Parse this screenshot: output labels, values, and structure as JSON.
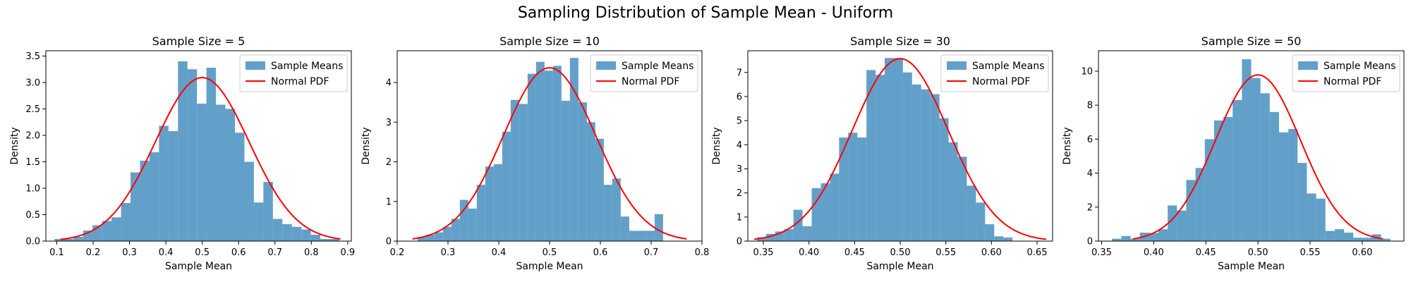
{
  "figure": {
    "title": "Sampling Distribution of Sample Mean - Uniform",
    "colors": {
      "histogram": "#1f77b4",
      "pdf": "#ff0000"
    }
  },
  "chart_data": [
    {
      "type": "bar",
      "title": "Sample Size = 5",
      "xlabel": "Sample Mean",
      "ylabel": "Density",
      "xlim": [
        0.07,
        0.91
      ],
      "ylim": [
        0,
        3.6
      ],
      "xticks": [
        0.1,
        0.2,
        0.3,
        0.4,
        0.5,
        0.6,
        0.7,
        0.8,
        0.9
      ],
      "xtick_labels": [
        "0.1",
        "0.2",
        "0.3",
        "0.4",
        "0.5",
        "0.6",
        "0.7",
        "0.8",
        "0.9"
      ],
      "yticks": [
        0,
        0.5,
        1.0,
        1.5,
        2.0,
        2.5,
        3.0,
        3.5
      ],
      "ytick_labels": [
        "0.0",
        "0.5",
        "1.0",
        "1.5",
        "2.0",
        "2.5",
        "3.0",
        "3.5"
      ],
      "legend": {
        "placement": "top-right",
        "entries": [
          "Sample Means",
          "Normal PDF"
        ]
      },
      "histogram": {
        "name": "Sample Means",
        "bin_start": 0.094,
        "bin_width": 0.0261,
        "densities": [
          0.04,
          0.04,
          0.08,
          0.2,
          0.3,
          0.38,
          0.45,
          0.72,
          1.3,
          1.52,
          1.68,
          2.18,
          2.08,
          3.4,
          3.25,
          2.6,
          3.28,
          2.58,
          2.5,
          2.05,
          1.5,
          0.73,
          1.12,
          0.42,
          0.32,
          0.27,
          0.22,
          0.12,
          0.04,
          0.04
        ]
      },
      "pdf": {
        "name": "Normal PDF",
        "mean": 0.5,
        "sd": 0.129,
        "x_range": [
          0.11,
          0.88
        ]
      }
    },
    {
      "type": "bar",
      "title": "Sample Size = 10",
      "xlabel": "Sample Mean",
      "ylabel": "Density",
      "xlim": [
        0.2,
        0.8
      ],
      "ylim": [
        0,
        4.8
      ],
      "xticks": [
        0.2,
        0.3,
        0.4,
        0.5,
        0.6,
        0.7,
        0.8
      ],
      "xtick_labels": [
        "0.2",
        "0.3",
        "0.4",
        "0.5",
        "0.6",
        "0.7",
        "0.8"
      ],
      "yticks": [
        0,
        1,
        2,
        3,
        4
      ],
      "ytick_labels": [
        "0",
        "1",
        "2",
        "3",
        "4"
      ],
      "legend": {
        "placement": "top-right",
        "entries": [
          "Sample Means",
          "Normal PDF"
        ]
      },
      "histogram": {
        "name": "Sample Means",
        "bin_start": 0.24,
        "bin_width": 0.01667,
        "densities": [
          0.1,
          0.16,
          0.22,
          0.36,
          0.56,
          1.04,
          0.82,
          1.42,
          1.88,
          1.94,
          2.76,
          3.56,
          3.46,
          4.22,
          4.52,
          4.3,
          4.42,
          3.54,
          4.62,
          3.5,
          3.0,
          2.58,
          1.42,
          1.58,
          0.62,
          0.26,
          0.26,
          0.26,
          0.68
        ]
      },
      "pdf": {
        "name": "Normal PDF",
        "mean": 0.5,
        "sd": 0.0913,
        "x_range": [
          0.23,
          0.77
        ]
      }
    },
    {
      "type": "bar",
      "title": "Sample Size = 30",
      "xlabel": "Sample Mean",
      "ylabel": "Density",
      "xlim": [
        0.333,
        0.667
      ],
      "ylim": [
        0,
        7.9
      ],
      "xticks": [
        0.35,
        0.4,
        0.45,
        0.5,
        0.55,
        0.6,
        0.65
      ],
      "xtick_labels": [
        "0.35",
        "0.40",
        "0.45",
        "0.50",
        "0.55",
        "0.60",
        "0.65"
      ],
      "yticks": [
        0,
        1,
        2,
        3,
        4,
        5,
        6,
        7
      ],
      "ytick_labels": [
        "0",
        "1",
        "2",
        "3",
        "4",
        "5",
        "6",
        "7"
      ],
      "legend": {
        "placement": "top-right",
        "entries": [
          "Sample Means",
          "Normal PDF"
        ]
      },
      "histogram": {
        "name": "Sample Means",
        "bin_start": 0.343,
        "bin_width": 0.01,
        "densities": [
          0.16,
          0.3,
          0.4,
          0.5,
          1.3,
          0.62,
          2.2,
          2.4,
          2.8,
          4.3,
          4.5,
          4.3,
          7.1,
          6.9,
          7.6,
          7.6,
          7.0,
          6.5,
          6.3,
          6.1,
          5.1,
          4.1,
          3.5,
          2.3,
          1.6,
          0.7,
          0.2,
          0.15
        ]
      },
      "pdf": {
        "name": "Normal PDF",
        "mean": 0.5,
        "sd": 0.0527,
        "x_range": [
          0.34,
          0.66
        ]
      }
    },
    {
      "type": "bar",
      "title": "Sample Size = 50",
      "xlabel": "Sample Mean",
      "ylabel": "Density",
      "xlim": [
        0.347,
        0.64
      ],
      "ylim": [
        0,
        11.2
      ],
      "xticks": [
        0.35,
        0.4,
        0.45,
        0.5,
        0.55,
        0.6
      ],
      "xtick_labels": [
        "0.35",
        "0.40",
        "0.45",
        "0.50",
        "0.55",
        "0.60"
      ],
      "yticks": [
        0,
        2,
        4,
        6,
        8,
        10
      ],
      "ytick_labels": [
        "0",
        "2",
        "4",
        "6",
        "8",
        "10"
      ],
      "legend": {
        "placement": "top-right",
        "entries": [
          "Sample Means",
          "Normal PDF"
        ]
      },
      "histogram": {
        "name": "Sample Means",
        "bin_start": 0.36,
        "bin_width": 0.0089,
        "densities": [
          0.14,
          0.3,
          0.14,
          0.5,
          0.48,
          0.7,
          2.1,
          1.8,
          3.6,
          4.3,
          6.0,
          7.1,
          7.3,
          8.3,
          10.7,
          9.6,
          8.7,
          7.6,
          6.4,
          6.6,
          4.6,
          2.8,
          2.5,
          0.6,
          0.7,
          0.5,
          0.2,
          0.2,
          0.4,
          0.14
        ]
      },
      "pdf": {
        "name": "Normal PDF",
        "mean": 0.5,
        "sd": 0.0408,
        "x_range": [
          0.38,
          0.62
        ]
      }
    }
  ]
}
